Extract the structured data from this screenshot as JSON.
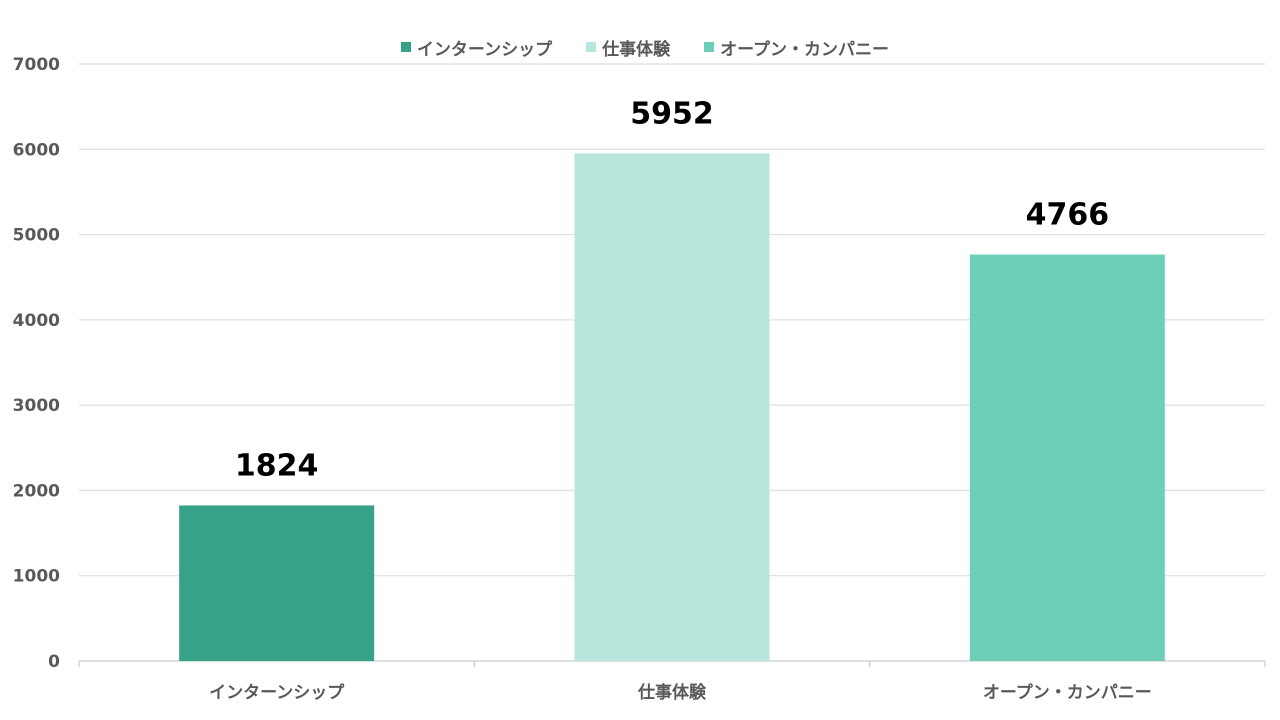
{
  "chart_data": {
    "type": "bar",
    "title": "",
    "xlabel": "",
    "ylabel": "",
    "categories": [
      "インターンシップ",
      "仕事体験",
      "オープン・カンパニー"
    ],
    "values": [
      1824,
      5952,
      4766
    ],
    "data_labels": [
      "1824",
      "5952",
      "4766"
    ],
    "colors": [
      "#36a287",
      "#b8e6dc",
      "#6ecfb8"
    ],
    "ylim": [
      0,
      7000
    ],
    "yticks": [
      0,
      1000,
      2000,
      3000,
      4000,
      5000,
      6000,
      7000
    ],
    "ytick_labels": [
      "0",
      "1000",
      "2000",
      "3000",
      "4000",
      "5000",
      "6000",
      "7000"
    ],
    "grid": true,
    "legend_position": "top-center",
    "legend": [
      {
        "label": "インターンシップ",
        "color": "#36a287"
      },
      {
        "label": "仕事体験",
        "color": "#b8e6dc"
      },
      {
        "label": "オープン・カンパニー",
        "color": "#6ecfb8"
      }
    ]
  },
  "colors": {
    "gridline": "#d9d9d9",
    "axis_line": "#bfbfbf",
    "tick_text": "#595959",
    "data_label_text": "#000000"
  }
}
